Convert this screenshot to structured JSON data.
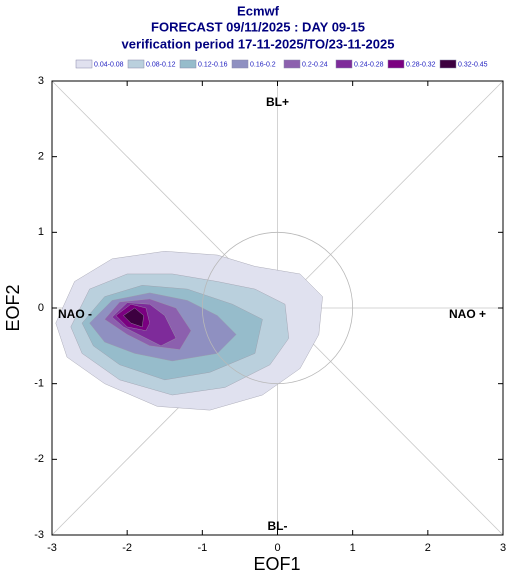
{
  "chart_data": {
    "type": "contour",
    "title": "Ecmwf",
    "subtitle": [
      "FORECAST 09/11/2025 : DAY 09-15",
      "verification period 17-11-2025/TO/23-11-2025"
    ],
    "x_label": "EOF1",
    "y_label": "EOF2",
    "annotations": [
      "BL+",
      "BL-",
      "NAO -",
      "NAO +"
    ],
    "xlim": [
      -3,
      3
    ],
    "ylim": [
      -3,
      3
    ],
    "xticks": [
      -3,
      -2,
      -1,
      0,
      1,
      2,
      3
    ],
    "yticks": [
      -3,
      -2,
      -1,
      0,
      1,
      2,
      3
    ],
    "series": [
      {
        "name": "0.04-0.08",
        "color": "#e0e1ef",
        "x": [
          -2.95,
          -2.7,
          -2.2,
          -1.5,
          -0.8,
          -0.3,
          0.3,
          0.6,
          0.55,
          0.3,
          -0.2,
          -0.9,
          -1.6,
          -2.3,
          -2.8
        ],
        "y": [
          -0.2,
          0.35,
          0.65,
          0.75,
          0.7,
          0.55,
          0.45,
          0.15,
          -0.35,
          -0.8,
          -1.15,
          -1.35,
          -1.3,
          -1.0,
          -0.65
        ]
      },
      {
        "name": "0.08-0.12",
        "color": "#bad0dd",
        "x": [
          -2.75,
          -2.5,
          -2.0,
          -1.4,
          -0.8,
          -0.3,
          0.1,
          0.15,
          -0.1,
          -0.7,
          -1.4,
          -2.1,
          -2.6
        ],
        "y": [
          -0.25,
          0.25,
          0.45,
          0.45,
          0.35,
          0.25,
          0.05,
          -0.4,
          -0.75,
          -1.05,
          -1.15,
          -0.95,
          -0.6
        ]
      },
      {
        "name": "0.12-0.16",
        "color": "#96bccb",
        "x": [
          -2.6,
          -2.3,
          -1.8,
          -1.2,
          -0.6,
          -0.2,
          -0.3,
          -0.9,
          -1.5,
          -2.1,
          -2.45
        ],
        "y": [
          -0.2,
          0.15,
          0.3,
          0.25,
          0.05,
          -0.15,
          -0.6,
          -0.85,
          -0.95,
          -0.75,
          -0.5
        ]
      },
      {
        "name": "0.16-0.2",
        "color": "#8f90c1",
        "x": [
          -2.5,
          -2.2,
          -1.7,
          -1.2,
          -0.8,
          -0.55,
          -0.8,
          -1.4,
          -1.9,
          -2.3
        ],
        "y": [
          -0.2,
          0.1,
          0.2,
          0.1,
          -0.1,
          -0.35,
          -0.6,
          -0.7,
          -0.6,
          -0.45
        ]
      },
      {
        "name": "0.2-0.24",
        "color": "#8c60ae",
        "x": [
          -2.3,
          -2.1,
          -1.7,
          -1.35,
          -1.15,
          -1.3,
          -1.7,
          -2.0
        ],
        "y": [
          -0.15,
          0.08,
          0.12,
          0.0,
          -0.3,
          -0.55,
          -0.5,
          -0.35
        ]
      },
      {
        "name": "0.24-0.28",
        "color": "#7e2b9a",
        "x": [
          -2.2,
          -2.0,
          -1.7,
          -1.5,
          -1.35,
          -1.55,
          -1.85,
          -2.05
        ],
        "y": [
          -0.12,
          0.07,
          0.05,
          -0.1,
          -0.4,
          -0.5,
          -0.35,
          -0.25
        ]
      },
      {
        "name": "0.28-0.32",
        "color": "#7a0080",
        "x": [
          -2.15,
          -1.95,
          -1.75,
          -1.7,
          -1.75,
          -2.0
        ],
        "y": [
          -0.1,
          0.05,
          0.0,
          -0.2,
          -0.3,
          -0.25
        ]
      },
      {
        "name": "0.32-0.45",
        "color": "#3d0040",
        "x": [
          -2.05,
          -1.9,
          -1.78,
          -1.8,
          -1.95
        ],
        "y": [
          -0.1,
          0.0,
          -0.1,
          -0.25,
          -0.2
        ]
      }
    ]
  }
}
